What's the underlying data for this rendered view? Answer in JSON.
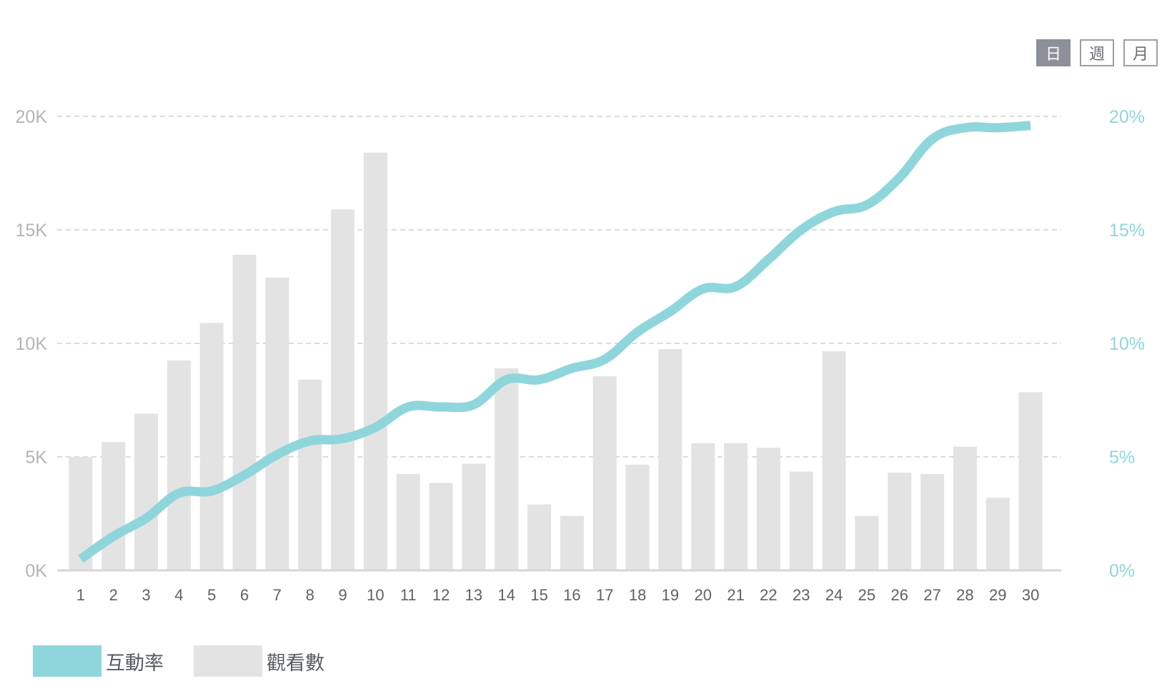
{
  "controls": {
    "period_options": [
      {
        "label": "日",
        "active": true
      },
      {
        "label": "週",
        "active": false
      },
      {
        "label": "月",
        "active": false
      }
    ]
  },
  "colors": {
    "engagement_line": "#8fd6dc",
    "views_bar": "#e3e3e3",
    "gridline": "#cfcfcf",
    "left_axis_text": "#b4b4b4",
    "right_axis_text": "#8fd6dc"
  },
  "chart_data": {
    "type": "bar",
    "categories": [
      "1",
      "2",
      "3",
      "4",
      "5",
      "6",
      "7",
      "8",
      "9",
      "10",
      "11",
      "12",
      "13",
      "14",
      "15",
      "16",
      "17",
      "18",
      "19",
      "20",
      "21",
      "22",
      "23",
      "24",
      "25",
      "26",
      "27",
      "28",
      "29",
      "30"
    ],
    "series": [
      {
        "name": "觀看數",
        "type": "bar",
        "axis": "left",
        "values": [
          5000,
          5650,
          6900,
          9250,
          10900,
          13900,
          12900,
          8400,
          15900,
          18400,
          4250,
          3850,
          4700,
          8900,
          2900,
          2400,
          8550,
          4650,
          9750,
          5600,
          5600,
          5400,
          4350,
          9650,
          2400,
          4300,
          4250,
          5450,
          3200,
          7850
        ]
      },
      {
        "name": "互動率",
        "type": "line",
        "axis": "right",
        "values": [
          0.5,
          1.5,
          2.3,
          3.4,
          3.5,
          4.2,
          5.1,
          5.7,
          5.8,
          6.3,
          7.2,
          7.2,
          7.3,
          8.4,
          8.4,
          8.9,
          9.3,
          10.5,
          11.4,
          12.4,
          12.5,
          13.7,
          15.0,
          15.8,
          16.1,
          17.3,
          19.0,
          19.5,
          19.5,
          19.6
        ]
      }
    ],
    "y_left": {
      "ticks": [
        "0K",
        "5K",
        "10K",
        "15K",
        "20K"
      ],
      "tick_values": [
        0,
        5000,
        10000,
        15000,
        20000
      ],
      "ylim": [
        0,
        20000
      ]
    },
    "y_right": {
      "ticks": [
        "0%",
        "5%",
        "10%",
        "15%",
        "20%"
      ],
      "tick_values": [
        0,
        5,
        10,
        15,
        20
      ],
      "ylim": [
        0,
        20
      ]
    },
    "grid": "horizontal-dashed",
    "legend_position": "bottom-left",
    "legend": [
      {
        "name": "互動率",
        "color": "#8fd6dc"
      },
      {
        "name": "觀看數",
        "color": "#e3e3e3"
      }
    ]
  }
}
